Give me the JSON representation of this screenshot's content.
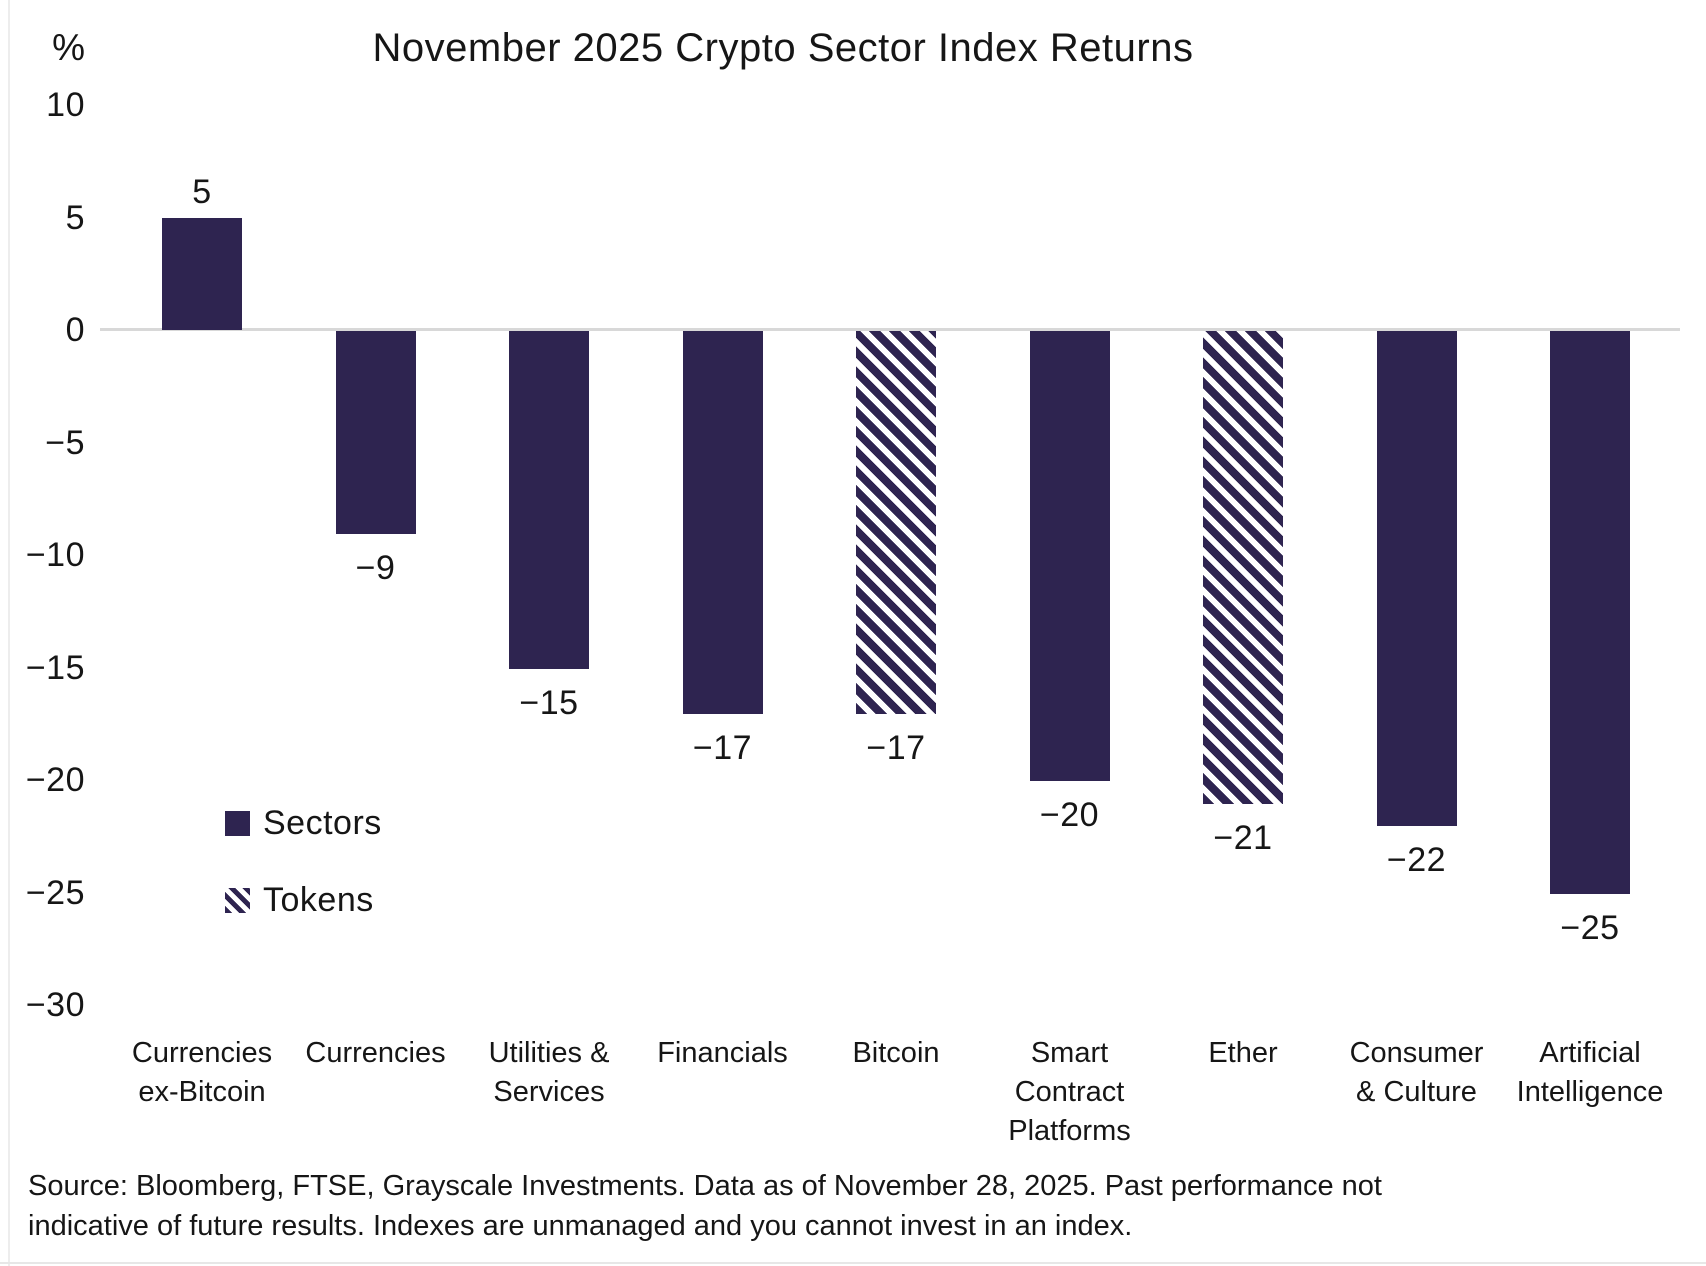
{
  "chart": {
    "title": "November 2025 Crypto Sector Index Returns",
    "y_axis_unit": "%"
  },
  "chart_data": {
    "type": "bar",
    "title": "November 2025 Crypto Sector Index Returns",
    "xlabel": "",
    "ylabel": "%",
    "ylim": [
      -30,
      10
    ],
    "grid": "zero-line-only",
    "legend_position": "inside-left",
    "categories": [
      "Currencies ex-Bitcoin",
      "Currencies",
      "Utilities & Services",
      "Financials",
      "Bitcoin",
      "Smart Contract Platforms",
      "Ether",
      "Consumer & Culture",
      "Artificial Intelligence"
    ],
    "values": [
      5,
      -9,
      -15,
      -17,
      -17,
      -20,
      -21,
      -22,
      -25
    ],
    "bar_styles": [
      "solid",
      "solid",
      "solid",
      "solid",
      "hatched",
      "solid",
      "hatched",
      "solid",
      "solid"
    ],
    "bars": [
      {
        "category_display": "Currencies\nex-Bitcoin",
        "value": 5,
        "value_label": "5",
        "style": "solid"
      },
      {
        "category_display": "Currencies",
        "value": -9,
        "value_label": "−9",
        "style": "solid"
      },
      {
        "category_display": "Utilities &\nServices",
        "value": -15,
        "value_label": "−15",
        "style": "solid"
      },
      {
        "category_display": "Financials",
        "value": -17,
        "value_label": "−17",
        "style": "solid"
      },
      {
        "category_display": "Bitcoin",
        "value": -17,
        "value_label": "−17",
        "style": "hatched"
      },
      {
        "category_display": "Smart\nContract\nPlatforms",
        "value": -20,
        "value_label": "−20",
        "style": "solid"
      },
      {
        "category_display": "Ether",
        "value": -21,
        "value_label": "−21",
        "style": "hatched"
      },
      {
        "category_display": "Consumer\n& Culture",
        "value": -22,
        "value_label": "−22",
        "style": "solid"
      },
      {
        "category_display": "Artificial\nIntelligence",
        "value": -25,
        "value_label": "−25",
        "style": "solid"
      }
    ],
    "yticks": [
      {
        "value": 10,
        "label": "10"
      },
      {
        "value": 5,
        "label": "5"
      },
      {
        "value": 0,
        "label": "0"
      },
      {
        "value": -5,
        "label": "−5"
      },
      {
        "value": -10,
        "label": "−10"
      },
      {
        "value": -15,
        "label": "−15"
      },
      {
        "value": -20,
        "label": "−20"
      },
      {
        "value": -25,
        "label": "−25"
      },
      {
        "value": -30,
        "label": "−30"
      }
    ],
    "legend": [
      {
        "label": "Sectors",
        "style": "solid"
      },
      {
        "label": "Tokens",
        "style": "hatched"
      }
    ],
    "colors": {
      "bar": "#2e2450",
      "zero_line": "#d8d8d8",
      "text": "#161616",
      "background": "#ffffff"
    }
  },
  "footer": {
    "source_text": "Source: Bloomberg, FTSE, Grayscale Investments. Data as of November 28, 2025. Past performance not\nindicative of future results. Indexes are unmanaged and you cannot invest in an index."
  }
}
